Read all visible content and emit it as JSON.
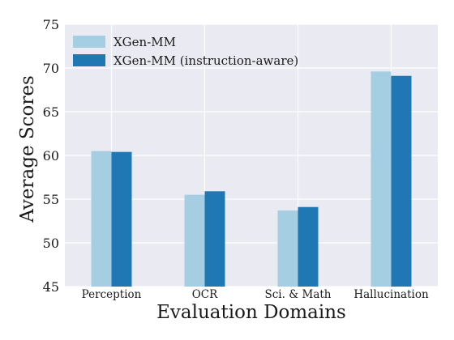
{
  "chart_data": {
    "type": "bar",
    "title": "",
    "xlabel": "Evaluation Domains",
    "ylabel": "Average Scores",
    "categories": [
      "Perception",
      "OCR",
      "Sci. & Math",
      "Hallucination"
    ],
    "series": [
      {
        "name": "XGen-MM",
        "color": "#a6cee3",
        "values": [
          60.5,
          55.5,
          53.7,
          69.6
        ]
      },
      {
        "name": "XGen-MM (instruction-aware)",
        "color": "#1f78b4",
        "values": [
          60.4,
          55.9,
          54.1,
          69.1
        ]
      }
    ],
    "ylim": [
      45,
      75
    ],
    "yticks": [
      45,
      50,
      55,
      60,
      65,
      70,
      75
    ],
    "grid": true,
    "background": "#eaeaf2",
    "legend_position": "top-left"
  }
}
